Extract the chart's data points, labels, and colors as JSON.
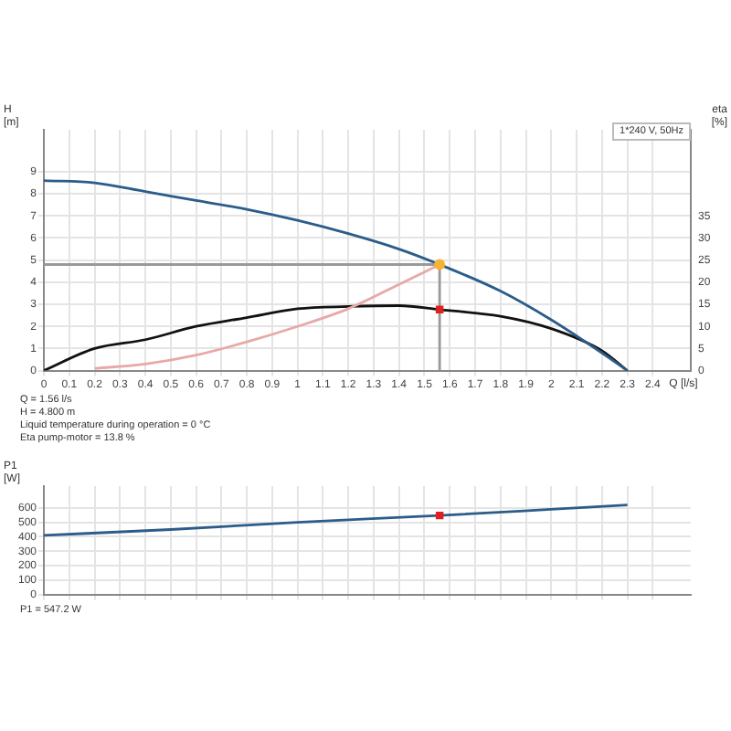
{
  "chart_data": [
    {
      "type": "line",
      "xlabel": "Q [l/s]",
      "ylabel": "H [m]",
      "y2label": "eta [%]",
      "xlim": [
        0,
        2.55
      ],
      "xticks": [
        0,
        0.1,
        0.2,
        0.3,
        0.4,
        0.5,
        0.6,
        0.7,
        0.8,
        0.9,
        1.0,
        1.1,
        1.2,
        1.3,
        1.4,
        1.5,
        1.6,
        1.7,
        1.8,
        1.9,
        2.0,
        2.1,
        2.2,
        2.3,
        2.4
      ],
      "ylim": [
        0,
        10.9
      ],
      "yticks": [
        0,
        1,
        2,
        3,
        4,
        5,
        6,
        7,
        8,
        9
      ],
      "y2lim": [
        0,
        54.5
      ],
      "y2ticks": [
        0,
        5,
        10,
        15,
        20,
        25,
        30,
        35
      ],
      "grid": true,
      "legend": false,
      "series": [
        {
          "color": "#999999",
          "x": [
            0,
            1.56
          ],
          "values": [
            4.8,
            4.8
          ]
        },
        {
          "color": "#999999",
          "x": [
            1.56,
            1.56
          ],
          "values": [
            0,
            4.8
          ]
        },
        {
          "color": "#e8a8a8",
          "x": [
            0.2,
            0.4,
            0.6,
            0.8,
            1.0,
            1.2,
            1.4,
            1.56
          ],
          "values": [
            0.1,
            0.3,
            0.7,
            1.3,
            2.0,
            2.8,
            3.9,
            4.8
          ]
        },
        {
          "color": "#2b5c8a",
          "x": [
            0,
            0.2,
            0.4,
            0.6,
            0.8,
            1.0,
            1.2,
            1.4,
            1.56,
            1.8,
            2.0,
            2.2,
            2.3
          ],
          "values": [
            8.6,
            8.5,
            8.1,
            7.7,
            7.3,
            6.8,
            6.2,
            5.5,
            4.8,
            3.6,
            2.3,
            0.8,
            0
          ]
        },
        {
          "axis": "y2",
          "color": "#111111",
          "x": [
            0,
            0.2,
            0.4,
            0.6,
            0.8,
            1.0,
            1.2,
            1.4,
            1.56,
            1.8,
            2.0,
            2.2,
            2.3
          ],
          "values": [
            0,
            5,
            7,
            10,
            12,
            14,
            14.5,
            14.7,
            13.8,
            12.3,
            9.5,
            4.5,
            0
          ]
        },
        {
          "type": "scatter",
          "marker": "circle",
          "color": "#f5b335",
          "x": [
            1.56
          ],
          "values": [
            4.8
          ]
        },
        {
          "type": "scatter",
          "marker": "square",
          "axis": "y2",
          "color": "#e02020",
          "x": [
            1.56
          ],
          "values": [
            13.8
          ]
        }
      ],
      "annotations": [
        "1*240 V, 50Hz",
        "Q = 1.56 l/s",
        "H = 4.800 m",
        "Liquid temperature during operation = 0 °C",
        "Eta pump-motor = 13.8 %"
      ]
    },
    {
      "type": "line",
      "ylabel": "P1 [W]",
      "xlim": [
        0,
        2.55
      ],
      "xticks": [
        0,
        0.1,
        0.2,
        0.3,
        0.4,
        0.5,
        0.6,
        0.7,
        0.8,
        0.9,
        1.0,
        1.1,
        1.2,
        1.3,
        1.4,
        1.5,
        1.6,
        1.7,
        1.8,
        1.9,
        2.0,
        2.1,
        2.2,
        2.3,
        2.4
      ],
      "ylim": [
        0,
        750
      ],
      "yticks": [
        0,
        100,
        200,
        300,
        400,
        500,
        600
      ],
      "grid": true,
      "legend": false,
      "tick_labels": "y",
      "series": [
        {
          "color": "#2b5c8a",
          "x": [
            0,
            0.5,
            1.0,
            1.56,
            2.0,
            2.3
          ],
          "values": [
            410,
            450,
            500,
            547.2,
            590,
            620
          ]
        },
        {
          "type": "scatter",
          "marker": "square",
          "color": "#e02020",
          "x": [
            1.56
          ],
          "values": [
            547.2
          ]
        }
      ],
      "annotations": [
        "P1 = 547.2 W"
      ]
    }
  ]
}
